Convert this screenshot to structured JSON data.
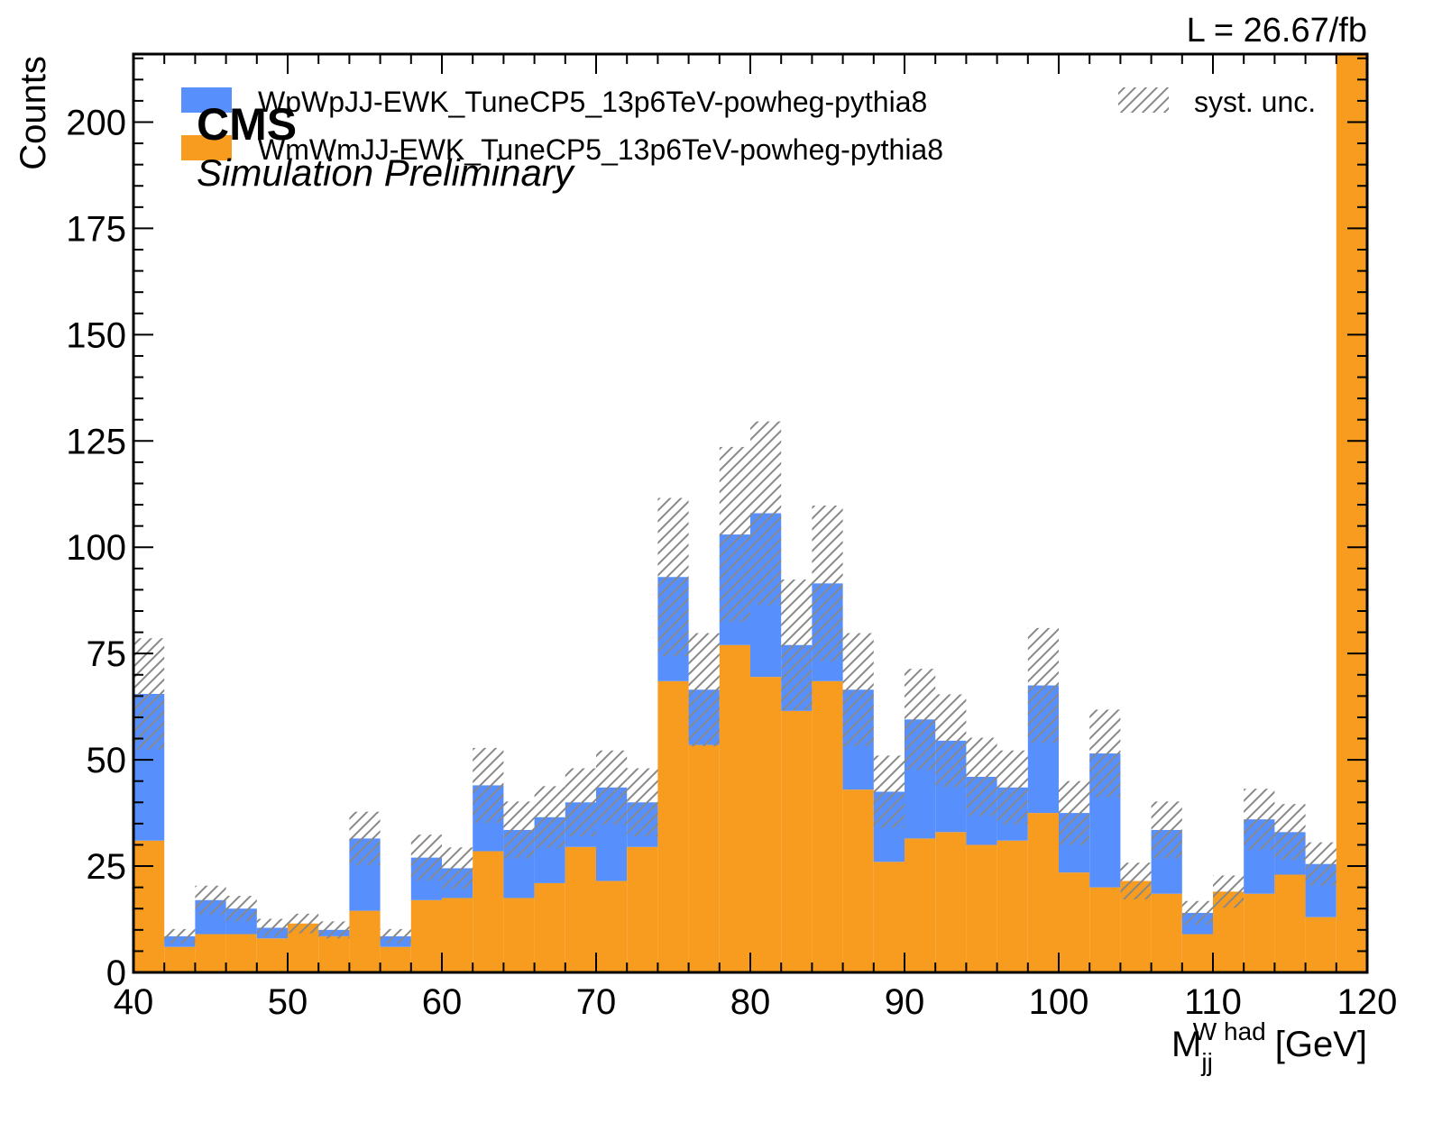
{
  "chart_data": {
    "type": "bar",
    "stacked": true,
    "histogram": true,
    "bin_edges": [
      40,
      42,
      44,
      46,
      48,
      50,
      52,
      54,
      56,
      58,
      60,
      62,
      64,
      66,
      68,
      70,
      72,
      74,
      76,
      78,
      80,
      82,
      84,
      86,
      88,
      90,
      92,
      94,
      96,
      98,
      100,
      102,
      104,
      106,
      108,
      110,
      112,
      114,
      116,
      118,
      120
    ],
    "xlim": [
      40,
      120
    ],
    "ylim": [
      0,
      216
    ],
    "x_ticks": [
      40,
      50,
      60,
      70,
      80,
      90,
      100,
      110,
      120
    ],
    "y_ticks": [
      0,
      25,
      50,
      75,
      100,
      125,
      150,
      175,
      200
    ],
    "x_minor_step": 2,
    "y_minor_step": 5,
    "ylabel": "Counts",
    "xlabel": {
      "base": "M",
      "sub": "jj",
      "sup": "W had",
      "unit": "[GeV]"
    },
    "series": [
      {
        "name": "WmWmJJ-EWK_TuneCP5_13p6TeV-powheg-pythia8",
        "color": "#f89c20",
        "values": [
          31,
          6,
          9,
          9,
          8,
          11.5,
          8.5,
          14.5,
          6,
          17,
          17.5,
          28.5,
          17.5,
          21,
          29.5,
          21.5,
          29.5,
          68.5,
          53.5,
          77,
          69.5,
          61.5,
          68.5,
          43,
          26,
          31.5,
          33,
          30,
          31,
          37.5,
          23.5,
          20,
          21.5,
          18.5,
          9,
          19,
          18.5,
          23,
          13,
          216
        ]
      },
      {
        "name": "WpWpJJ-EWK_TuneCP5_13p6TeV-powheg-pythia8",
        "color": "#5790fc",
        "values": [
          34.5,
          2.5,
          8,
          6,
          2.5,
          0,
          1.5,
          17,
          2.5,
          10,
          7,
          15.5,
          16,
          15.5,
          10.5,
          22,
          10.5,
          24.5,
          13,
          26,
          38.5,
          15.5,
          23,
          23.5,
          16.5,
          28,
          21.5,
          16,
          12.5,
          30,
          14,
          31.5,
          0,
          15,
          5,
          0,
          17.5,
          10,
          12.5,
          0
        ]
      }
    ],
    "syst_unc": {
      "name": "syst. unc.",
      "color": "#888888",
      "pattern": "diagonal-hatch",
      "half_width_fraction": 0.2
    },
    "legend_position": "top",
    "lumi_label": "L = 26.67/fb",
    "experiment_label": "CMS",
    "experiment_sublabel": "Simulation Preliminary"
  }
}
